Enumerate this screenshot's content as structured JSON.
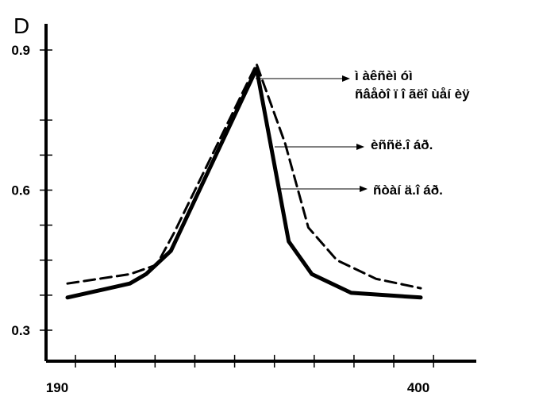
{
  "chart_data": {
    "type": "line",
    "ylabel": "D",
    "xlabel": "",
    "xlim": [
      190,
      400
    ],
    "ylim": [
      0.3,
      0.9
    ],
    "x_ticks": [
      190,
      400
    ],
    "y_ticks": [
      0.3,
      0.6,
      0.9
    ],
    "grid": false,
    "series": [
      {
        "name": "èññë.î áð.",
        "style": "dashed",
        "x": [
          202,
          237,
          252,
          262,
          308,
          324,
          337,
          353,
          375,
          400
        ],
        "y": [
          0.4,
          0.42,
          0.44,
          0.51,
          0.87,
          0.7,
          0.52,
          0.45,
          0.41,
          0.39
        ]
      },
      {
        "name": "ñòàí ä.î áð.",
        "style": "solid",
        "x": [
          202,
          237,
          246,
          260,
          308,
          326,
          339,
          361,
          400
        ],
        "y": [
          0.37,
          0.4,
          0.42,
          0.47,
          0.86,
          0.49,
          0.42,
          0.38,
          0.37
        ]
      }
    ],
    "annotations": [
      {
        "text": "ì àêñèì óì ñâåòî ï î ãëî ùåí èÿ"
      }
    ]
  }
}
